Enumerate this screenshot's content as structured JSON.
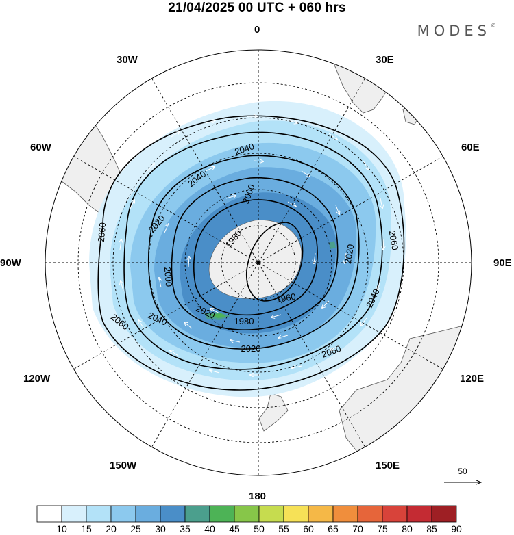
{
  "title": "21/04/2025  00 UTC  + 060 hrs",
  "brand": "MODES",
  "brand_mark": "©",
  "longitude_labels": {
    "lon_0": "0",
    "lon_30e": "30E",
    "lon_60e": "60E",
    "lon_90e": "90E",
    "lon_120e": "120E",
    "lon_150e": "150E",
    "lon_180": "180",
    "lon_150w": "150W",
    "lon_120w": "120W",
    "lon_90w": "90W",
    "lon_60w": "60W",
    "lon_30w": "30W"
  },
  "contour_labels": [
    "2040",
    "2040",
    "2000",
    "2020",
    "1980",
    "2060",
    "2020",
    "2060",
    "2000",
    "1960",
    "2040",
    "2060",
    "2040",
    "2020",
    "1980",
    "2060",
    "2020"
  ],
  "contour_levels": [
    1960,
    1980,
    2000,
    2020,
    2040,
    2060
  ],
  "vector_reference": {
    "label": "50"
  },
  "colorbar": {
    "ticks": [
      "10",
      "15",
      "20",
      "25",
      "30",
      "35",
      "40",
      "45",
      "50",
      "55",
      "60",
      "65",
      "70",
      "75",
      "80",
      "85",
      "90"
    ],
    "colors": [
      "#ffffff",
      "#d8f0fc",
      "#b3e2f8",
      "#8cc9ee",
      "#6aaddf",
      "#4a8ec8",
      "#4b9f8d",
      "#4db356",
      "#87c649",
      "#c6dc4f",
      "#f6e157",
      "#f5b847",
      "#f08e3c",
      "#e6653a",
      "#d8433a",
      "#c42b33",
      "#9e1f24"
    ]
  },
  "colors": {
    "land": "#efefef",
    "coast": "#555555",
    "contour": "#000000",
    "wind_arrow": "#ffffff"
  }
}
